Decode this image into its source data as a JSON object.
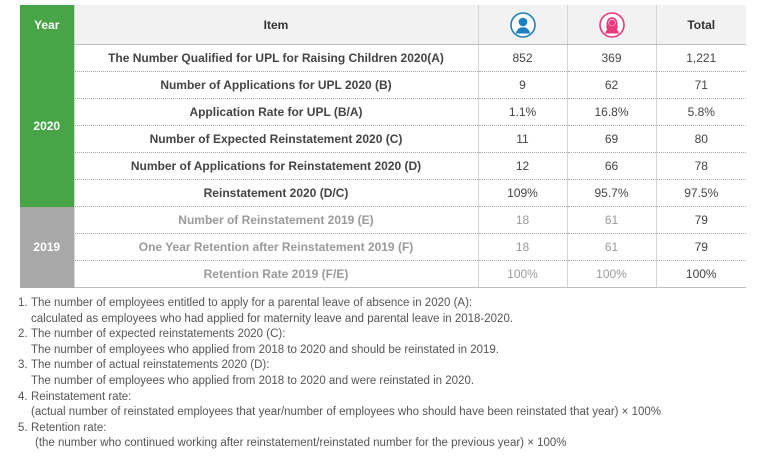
{
  "colors": {
    "green": "#47a447",
    "gray": "#a8a8a8",
    "male": "#1e7fc0",
    "female": "#e8397d",
    "item_green": "#4aa33c"
  },
  "header": {
    "year": "Year",
    "item": "Item",
    "male_icon": "male-person-icon",
    "female_icon": "female-person-icon",
    "total": "Total"
  },
  "groups": [
    {
      "year": "2020",
      "rows": [
        {
          "item": "The Number Qualified for UPL for Raising Children 2020(A)",
          "male": "852",
          "female": "369",
          "total": "1,221"
        },
        {
          "item": "Number of Applications for UPL 2020 (B)",
          "male": "9",
          "female": "62",
          "total": "71"
        },
        {
          "item": "Application Rate for UPL (B/A)",
          "male": "1.1%",
          "female": "16.8%",
          "total": "5.8%"
        },
        {
          "item": "Number of Expected Reinstatement 2020 (C)",
          "male": "11",
          "female": "69",
          "total": "80"
        },
        {
          "item": "Number of Applications for Reinstatement 2020 (D)",
          "male": "12",
          "female": "66",
          "total": "78"
        },
        {
          "item": "Reinstatement 2020 (D/C)",
          "male": "109%",
          "female": "95.7%",
          "total": "97.5%"
        }
      ]
    },
    {
      "year": "2019",
      "rows": [
        {
          "item": "Number of Reinstatement 2019 (E)",
          "male": "18",
          "female": "61",
          "total": "79"
        },
        {
          "item": "One Year Retention after Reinstatement 2019 (F)",
          "male": "18",
          "female": "61",
          "total": "79"
        },
        {
          "item": "Retention Rate 2019 (F/E)",
          "male": "100%",
          "female": "100%",
          "total": "100%"
        }
      ]
    }
  ],
  "notes": [
    {
      "num": "1.",
      "line1": "The number of employees entitled to apply for a parental leave of absence in 2020 (A):",
      "line2": "calculated as employees who had applied for maternity leave and parental leave in 2018-2020."
    },
    {
      "num": "2.",
      "line1": "The number of expected reinstatements 2020 (C):",
      "line2": "The number of employees who applied from 2018 to 2020 and should be reinstated in 2019."
    },
    {
      "num": "3.",
      "line1": "The number of actual reinstatements 2020 (D):",
      "line2": "The number of employees who applied from 2018 to 2020 and were reinstated in 2020."
    },
    {
      "num": "4.",
      "line1": "Reinstatement rate:",
      "line2": "(actual number of reinstated employees that year/number of employees who should have been reinstated that year) × 100%"
    },
    {
      "num": "5.",
      "line1": "Retention rate:",
      "line2": "(the number who continued working after reinstatement/reinstated number for the previous year) × 100%"
    }
  ]
}
